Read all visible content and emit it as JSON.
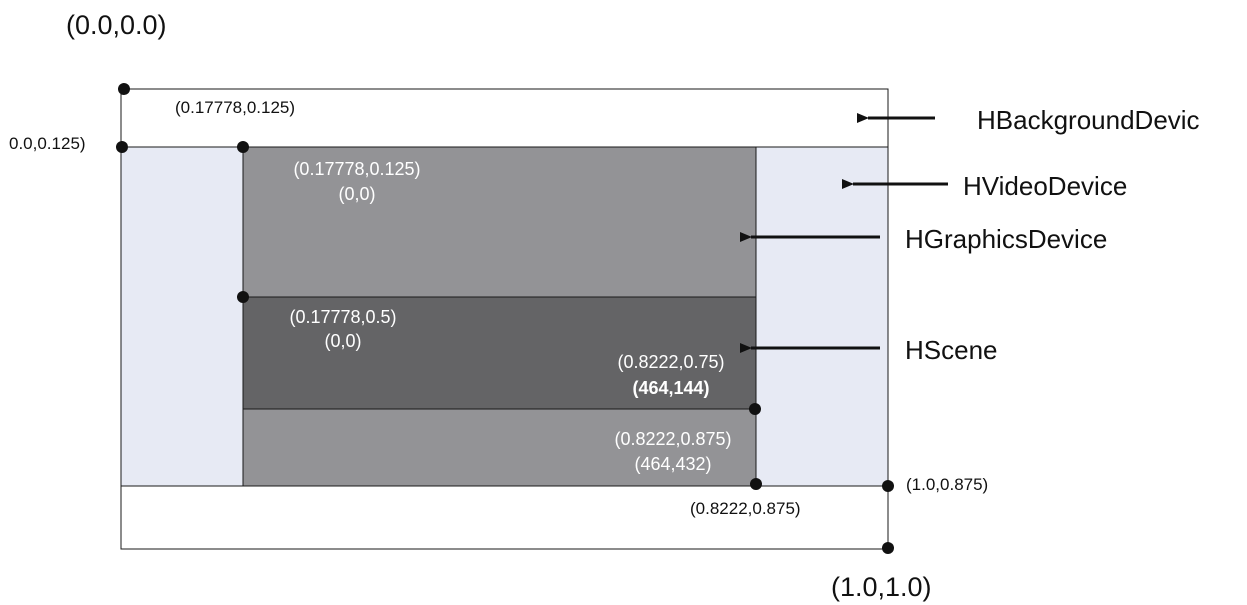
{
  "corners": {
    "origin": "(0.0,0.0)",
    "end": "(1.0,1.0)"
  },
  "labels": {
    "outer_top_left": "(0.17778,0.125)",
    "video_left": "0.0,0.125)",
    "video_bottom_right": "(1.0,0.875)",
    "graphics_bottom_right": "(0.8222,0.875)"
  },
  "graphics": {
    "normalized": "(0.17778,0.125)",
    "pixel": "(0,0)",
    "bottom_normalized": "(0.8222,0.875)",
    "bottom_pixel": "(464,432)"
  },
  "scene": {
    "normalized": "(0.17778,0.5)",
    "pixel": "(0,0)",
    "bottom_normalized": "(0.8222,0.75)",
    "bottom_pixel": "(464,144)"
  },
  "devices": {
    "background": "HBackgroundDevic",
    "video": "HVideoDevice",
    "graphics": "HGraphicsDevice",
    "scene": "HScene"
  },
  "colors": {
    "video_fill": "#e7eaf4",
    "graphics_fill": "#939396",
    "scene_fill": "#646466",
    "outline": "#1a1a1a",
    "dot": "#111111"
  }
}
